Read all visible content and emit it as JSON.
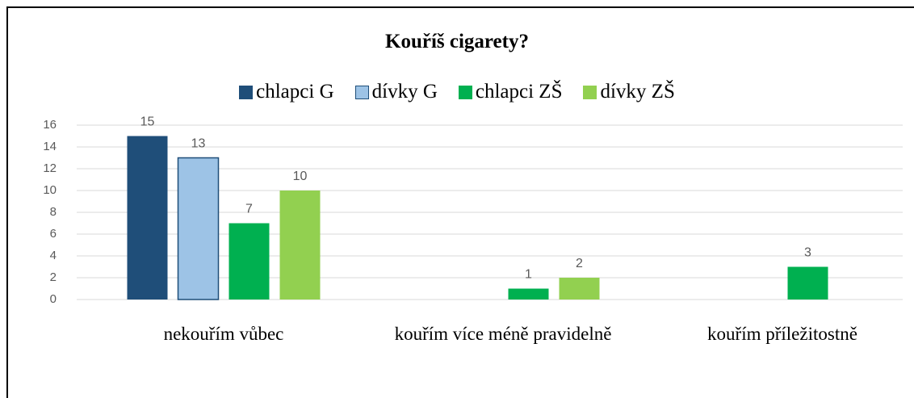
{
  "chart_data": {
    "type": "bar",
    "title": "Kouříš cigarety?",
    "categories": [
      "nekouřím vůbec",
      "kouřím více méně pravidelně",
      "kouřím příležitostně"
    ],
    "series": [
      {
        "name": "chlapci G",
        "color": "#1f4e79",
        "values": [
          15,
          null,
          null
        ]
      },
      {
        "name": "dívky G",
        "color": "#9dc3e6",
        "values": [
          13,
          null,
          null
        ]
      },
      {
        "name": "chlapci ZŠ",
        "color": "#00b050",
        "values": [
          7,
          1,
          3
        ]
      },
      {
        "name": "dívky ZŠ",
        "color": "#92d050",
        "values": [
          10,
          2,
          null
        ]
      }
    ],
    "ylim": [
      0,
      16
    ],
    "yticks": [
      0,
      2,
      4,
      6,
      8,
      10,
      12,
      14,
      16
    ],
    "grid": true,
    "legend": "top"
  }
}
